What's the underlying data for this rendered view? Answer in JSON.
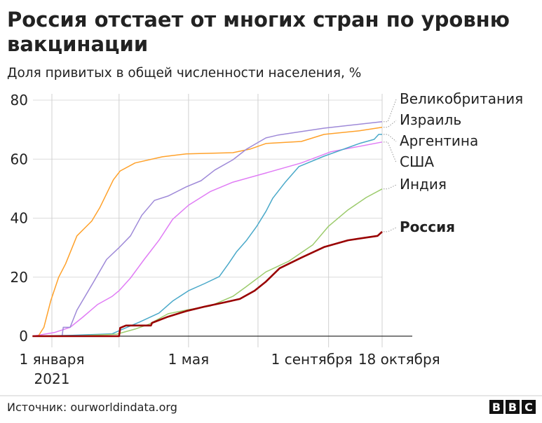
{
  "title": "Россия отстает от многих стран по уровню вакцинации",
  "title_lines": [
    "Россия отстает от многих стран по уровню",
    "вакцинации"
  ],
  "subtitle": "Доля привитых в общей численности населения, %",
  "source": "Источник: ourworldindata.org",
  "logo": "BBC",
  "chart_data": {
    "type": "line",
    "title": "Россия отстает от многих стран по уровню вакцинации",
    "ylabel": "Доля привитых в общей численности населения, %",
    "xlabel": "",
    "ylim": [
      0,
      80
    ],
    "xlim": [
      "2020-12-15",
      "2021-10-18"
    ],
    "grid": true,
    "legend": "right, labels at line ends",
    "y_ticks": [
      "0",
      "20",
      "40",
      "60",
      "80"
    ],
    "y_tick_values": [
      0,
      20,
      40,
      60,
      80
    ],
    "x_ticks": [
      {
        "date": "2021-01-01",
        "label": "1 января",
        "label2": "2021"
      },
      {
        "date": "2021-03-01",
        "label": "",
        "label2": ""
      },
      {
        "date": "2021-05-01",
        "label": "1 мая",
        "label2": ""
      },
      {
        "date": "2021-07-01",
        "label": "",
        "label2": ""
      },
      {
        "date": "2021-09-01",
        "label": "1 сентября",
        "label2": ""
      },
      {
        "date": "2021-10-18",
        "label": "18 октября",
        "label2": ""
      }
    ],
    "series": [
      {
        "name": "Великобритания",
        "color": "#9e89d8",
        "bold": false,
        "points": [
          [
            "2020-12-15",
            0
          ],
          [
            "2021-01-10",
            0
          ],
          [
            "2021-01-11",
            3
          ],
          [
            "2021-01-17",
            3
          ],
          [
            "2021-01-23",
            8.8
          ],
          [
            "2021-02-06",
            18
          ],
          [
            "2021-02-18",
            26
          ],
          [
            "2021-03-01",
            30
          ],
          [
            "2021-03-11",
            34
          ],
          [
            "2021-03-21",
            41
          ],
          [
            "2021-04-01",
            46
          ],
          [
            "2021-04-13",
            47.5
          ],
          [
            "2021-04-29",
            50.6
          ],
          [
            "2021-05-12",
            52.7
          ],
          [
            "2021-05-24",
            56.3
          ],
          [
            "2021-06-09",
            59.8
          ],
          [
            "2021-06-21",
            63.4
          ],
          [
            "2021-07-08",
            67.2
          ],
          [
            "2021-07-19",
            68.2
          ],
          [
            "2021-08-28",
            70.5
          ],
          [
            "2021-10-18",
            72.7
          ]
        ]
      },
      {
        "name": "Израиль",
        "color": "#ffa12a",
        "bold": false,
        "points": [
          [
            "2020-12-15",
            0
          ],
          [
            "2020-12-20",
            0
          ],
          [
            "2020-12-25",
            3
          ],
          [
            "2020-12-31",
            12
          ],
          [
            "2021-01-07",
            20
          ],
          [
            "2021-01-13",
            24.5
          ],
          [
            "2021-01-23",
            34
          ],
          [
            "2021-02-05",
            39
          ],
          [
            "2021-02-12",
            43.5
          ],
          [
            "2021-02-24",
            53
          ],
          [
            "2021-03-02",
            56
          ],
          [
            "2021-03-15",
            58.7
          ],
          [
            "2021-04-08",
            60.8
          ],
          [
            "2021-04-29",
            61.8
          ],
          [
            "2021-06-09",
            62.2
          ],
          [
            "2021-06-24",
            63.4
          ],
          [
            "2021-07-08",
            65.3
          ],
          [
            "2021-08-08",
            66
          ],
          [
            "2021-08-28",
            68.4
          ],
          [
            "2021-09-28",
            69.6
          ],
          [
            "2021-10-18",
            70.8
          ]
        ]
      },
      {
        "name": "Аргентина",
        "color": "#4aa9c9",
        "bold": false,
        "points": [
          [
            "2020-12-15",
            0
          ],
          [
            "2021-01-19",
            0.3
          ],
          [
            "2021-02-23",
            0.8
          ],
          [
            "2021-03-02",
            2
          ],
          [
            "2021-03-19",
            4.8
          ],
          [
            "2021-04-05",
            7.8
          ],
          [
            "2021-04-17",
            11.9
          ],
          [
            "2021-05-01",
            15.4
          ],
          [
            "2021-05-15",
            17.8
          ],
          [
            "2021-05-28",
            20.2
          ],
          [
            "2021-06-05",
            24.5
          ],
          [
            "2021-06-12",
            28.5
          ],
          [
            "2021-06-21",
            32.5
          ],
          [
            "2021-06-30",
            37.3
          ],
          [
            "2021-07-08",
            42.3
          ],
          [
            "2021-07-14",
            46.8
          ],
          [
            "2021-07-25",
            52.2
          ],
          [
            "2021-08-06",
            57.5
          ],
          [
            "2021-08-28",
            61
          ],
          [
            "2021-09-28",
            65.3
          ],
          [
            "2021-10-11",
            66.7
          ],
          [
            "2021-10-15",
            68.4
          ],
          [
            "2021-10-18",
            68.4
          ]
        ]
      },
      {
        "name": "США",
        "color": "#e07cf5",
        "bold": false,
        "points": [
          [
            "2020-12-15",
            0
          ],
          [
            "2021-01-03",
            1.2
          ],
          [
            "2021-01-17",
            3
          ],
          [
            "2021-01-28",
            6.4
          ],
          [
            "2021-02-10",
            10.7
          ],
          [
            "2021-02-23",
            13.5
          ],
          [
            "2021-03-01",
            15.4
          ],
          [
            "2021-03-11",
            19.7
          ],
          [
            "2021-03-23",
            26
          ],
          [
            "2021-04-05",
            32.5
          ],
          [
            "2021-04-17",
            39.6
          ],
          [
            "2021-05-01",
            44.4
          ],
          [
            "2021-05-20",
            49
          ],
          [
            "2021-06-09",
            52.2
          ],
          [
            "2021-07-08",
            55.3
          ],
          [
            "2021-08-08",
            58.7
          ],
          [
            "2021-09-03",
            62.5
          ],
          [
            "2021-10-18",
            65.8
          ]
        ]
      },
      {
        "name": "Индия",
        "color": "#9ccb6c",
        "bold": false,
        "points": [
          [
            "2020-12-15",
            0
          ],
          [
            "2021-01-19",
            0
          ],
          [
            "2021-02-27",
            0.7
          ],
          [
            "2021-03-15",
            2.4
          ],
          [
            "2021-03-27",
            4
          ],
          [
            "2021-04-13",
            7.6
          ],
          [
            "2021-05-01",
            9
          ],
          [
            "2021-05-20",
            10.2
          ],
          [
            "2021-06-09",
            13.5
          ],
          [
            "2021-06-20",
            16.6
          ],
          [
            "2021-07-08",
            21.8
          ],
          [
            "2021-07-28",
            25.4
          ],
          [
            "2021-08-18",
            30.9
          ],
          [
            "2021-09-01",
            37.3
          ],
          [
            "2021-09-18",
            42.8
          ],
          [
            "2021-10-04",
            47
          ],
          [
            "2021-10-18",
            49.9
          ]
        ]
      },
      {
        "name": "Россия",
        "color": "#990000",
        "bold": true,
        "points": [
          [
            "2020-12-15",
            0
          ],
          [
            "2021-03-01",
            0
          ],
          [
            "2021-03-02",
            2.8
          ],
          [
            "2021-03-07",
            3.6
          ],
          [
            "2021-03-29",
            3.6
          ],
          [
            "2021-03-30",
            4.5
          ],
          [
            "2021-04-13",
            6.6
          ],
          [
            "2021-04-29",
            8.5
          ],
          [
            "2021-05-15",
            10
          ],
          [
            "2021-06-01",
            11.4
          ],
          [
            "2021-06-15",
            12.6
          ],
          [
            "2021-06-28",
            15.4
          ],
          [
            "2021-07-08",
            18.5
          ],
          [
            "2021-07-20",
            23
          ],
          [
            "2021-08-08",
            26.6
          ],
          [
            "2021-08-28",
            30.2
          ],
          [
            "2021-09-18",
            32.5
          ],
          [
            "2021-10-14",
            34
          ],
          [
            "2021-10-18",
            35.4
          ]
        ]
      }
    ]
  }
}
